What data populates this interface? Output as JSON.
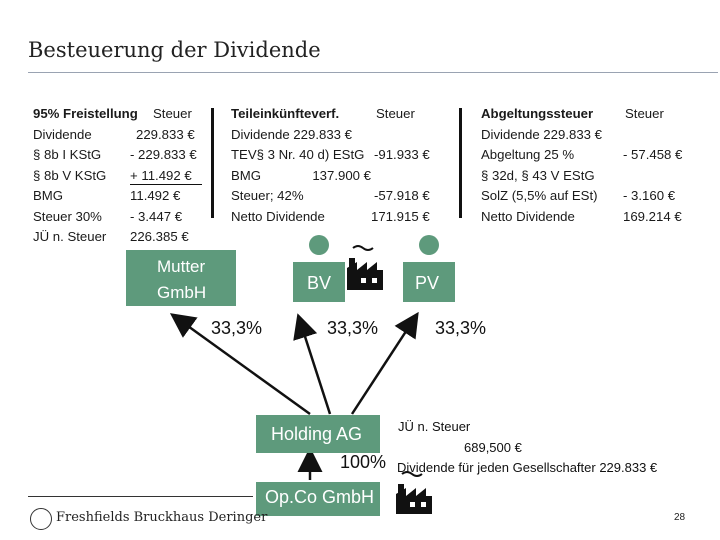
{
  "title": "Besteuerung der Dividende",
  "left_table": {
    "header_label": "95% Freistellung",
    "header_right": "Steuer",
    "rows": [
      {
        "label": "Dividende",
        "value": "229.833 €"
      },
      {
        "label": "§ 8b I KStG",
        "value": "- 229.833 €"
      },
      {
        "label": "§ 8b V KStG",
        "value": "+ 11.492 €"
      },
      {
        "label": "BMG",
        "value": "11.492 €"
      },
      {
        "label": "Steuer 30%",
        "value": "- 3.447 €"
      },
      {
        "label": "JÜ n. Steuer",
        "value": "226.385 €"
      }
    ]
  },
  "middle_table": {
    "header_label": "Teileinkünfteverf.",
    "header_right": "Steuer",
    "rows": [
      {
        "label": "Dividende  229.833 €",
        "value": ""
      },
      {
        "label": "TEV§ 3 Nr. 40 d) EStG",
        "value": "-91.933 €"
      },
      {
        "label": "BMG              137.900 €",
        "value": ""
      },
      {
        "label": "Steuer; 42%",
        "value": "-57.918 €"
      },
      {
        "label": "Netto Dividende",
        "value": "171.915 €"
      }
    ]
  },
  "right_table": {
    "header_label": "Abgeltungssteuer",
    "header_right": "Steuer",
    "rows": [
      {
        "label": "Dividende  229.833 €",
        "value": ""
      },
      {
        "label": "Abgeltung 25 %",
        "value": "- 57.458 €"
      },
      {
        "label": "§ 32d, § 43 V EStG",
        "value": ""
      },
      {
        "label": "SolZ (5,5% auf ESt)",
        "value": "- 3.160 €"
      },
      {
        "label": "Netto Dividende",
        "value": "169.214 €"
      }
    ]
  },
  "entities": {
    "mutter": {
      "line1": "Mutter",
      "line2": "GmbH"
    },
    "bv": "BV",
    "pv": "PV",
    "holding": "Holding AG",
    "opco": "Op.Co GmbH"
  },
  "percentages": {
    "left": "33,3%",
    "middle": "33,3%",
    "right": "33,3%",
    "opco": "100%"
  },
  "holding_notes": {
    "line1": "JÜ n. Steuer",
    "line2": "689,500 €",
    "line3": "Dividende für jeden Gesellschafter 229.833 €"
  },
  "footer": {
    "firm": "Freshfields Bruckhaus Deringer",
    "page": "28"
  },
  "colors": {
    "box_green": "#5e9a7c",
    "text": "#1a1a1a"
  }
}
